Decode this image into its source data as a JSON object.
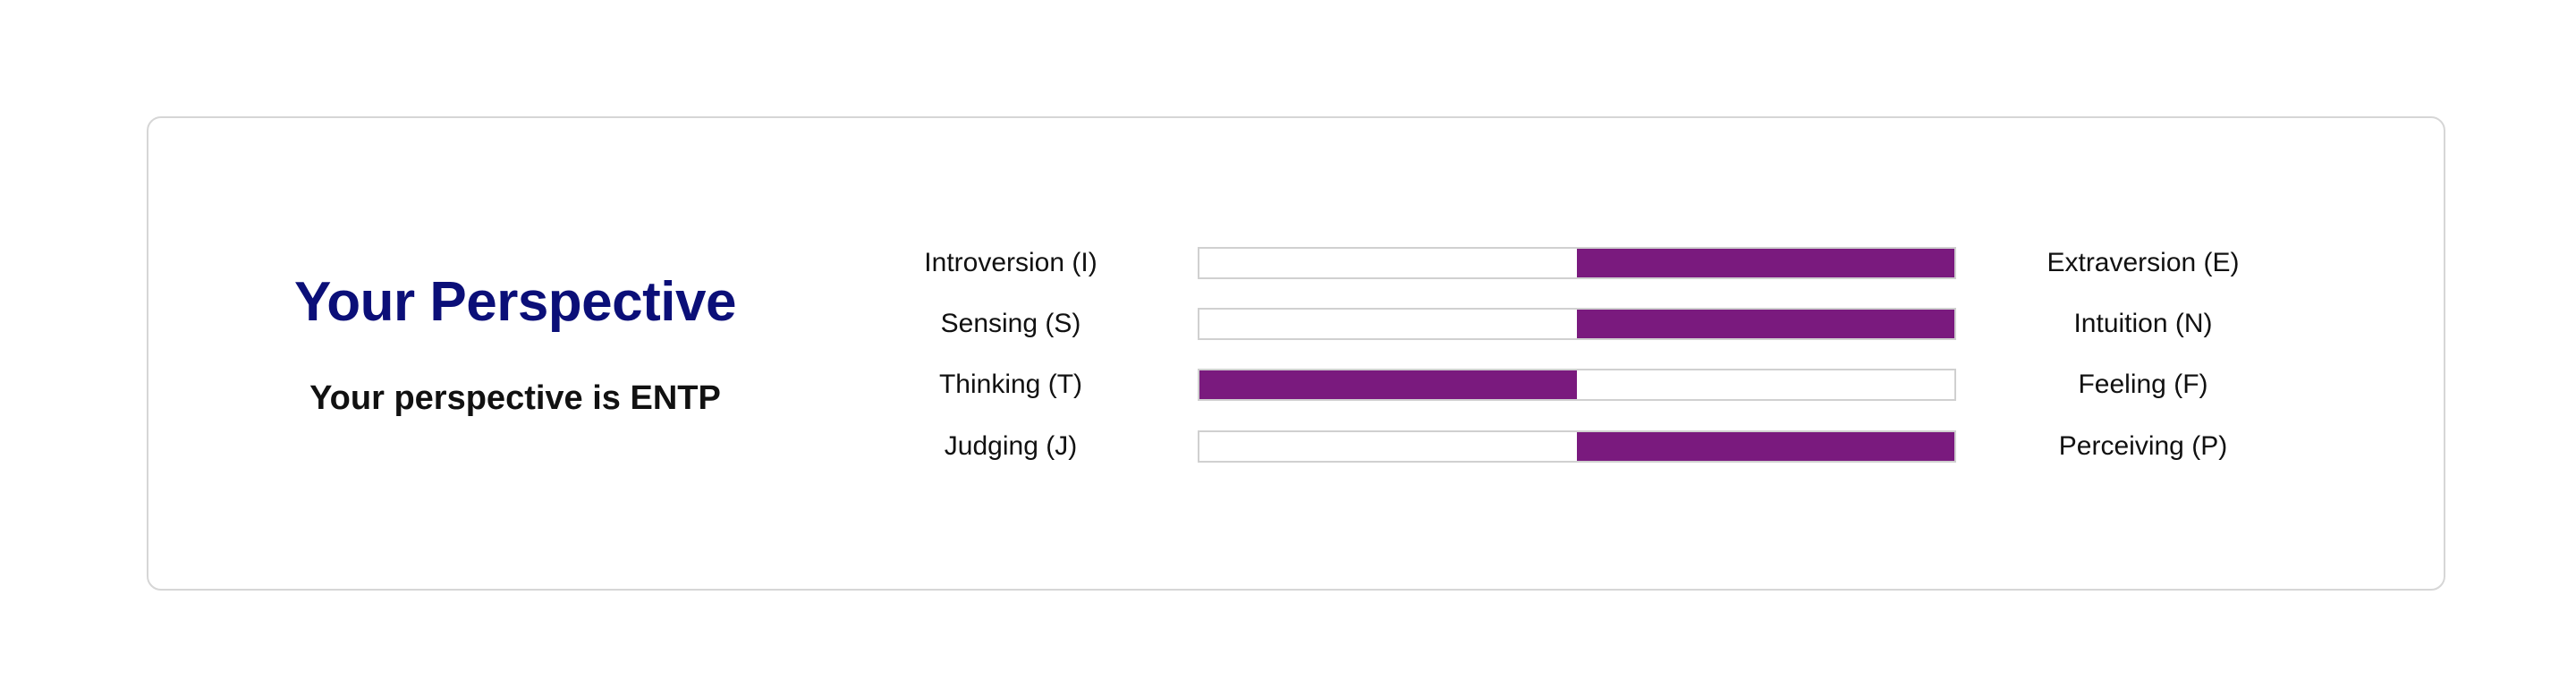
{
  "header": {
    "title": "Your Perspective",
    "result": "Your perspective is ENTP"
  },
  "colors": {
    "title": "#0b0f78",
    "bar_fill": "#7a1a7e",
    "bar_border": "#d0d0d0"
  },
  "scales": [
    {
      "left_label": "Introversion (I)",
      "right_label": "Extraversion (E)",
      "leaning": "right",
      "fill_fraction": 0.5
    },
    {
      "left_label": "Sensing (S)",
      "right_label": "Intuition (N)",
      "leaning": "right",
      "fill_fraction": 0.5
    },
    {
      "left_label": "Thinking (T)",
      "right_label": "Feeling (F)",
      "leaning": "left",
      "fill_fraction": 0.5
    },
    {
      "left_label": "Judging (J)",
      "right_label": "Perceiving (P)",
      "leaning": "right",
      "fill_fraction": 0.5
    }
  ]
}
